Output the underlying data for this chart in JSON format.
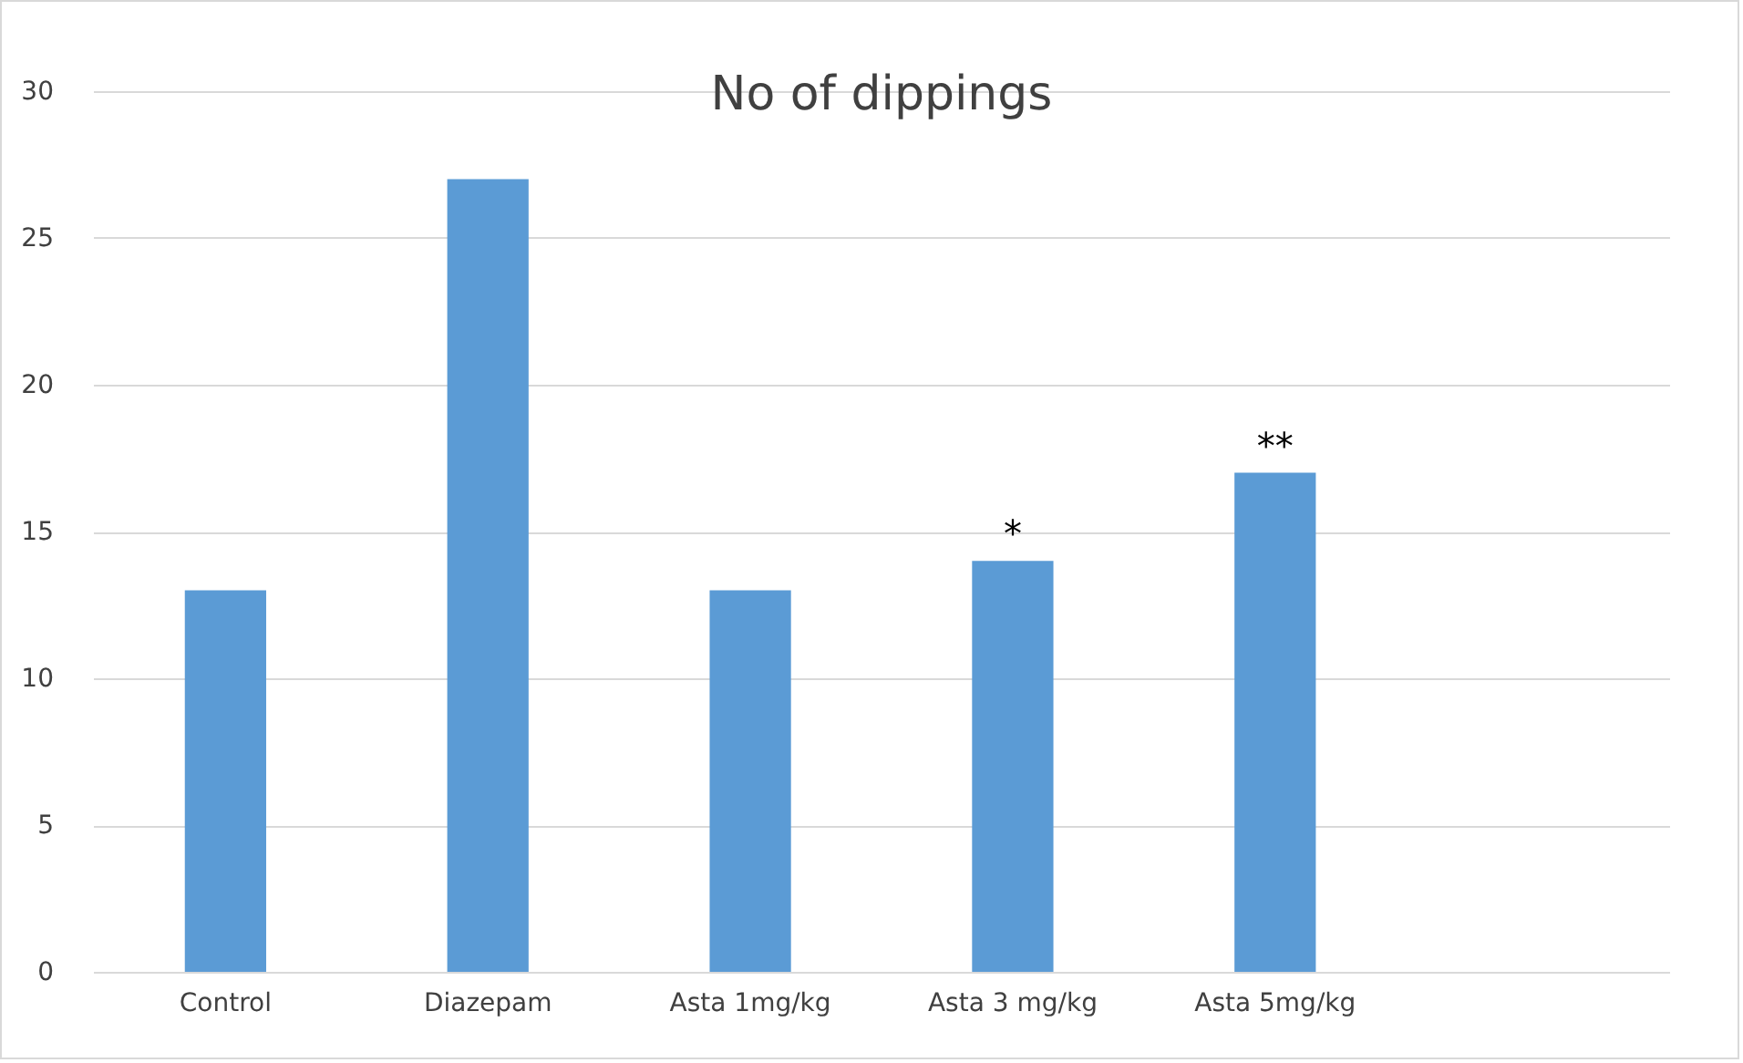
{
  "chart_data": {
    "type": "bar",
    "title": "No of dippings",
    "categories": [
      "Control",
      "Diazepam",
      "Asta 1mg/kg",
      "Asta 3 mg/kg",
      "Asta 5mg/kg",
      null
    ],
    "values": [
      13,
      27,
      13,
      14,
      17,
      null
    ],
    "color": "#5b9bd5",
    "ylim": [
      0,
      30
    ],
    "yticks": [
      0,
      5,
      10,
      15,
      20,
      25,
      30
    ],
    "grid": "y",
    "annotations": [
      {
        "text": "*",
        "x": "Asta 3 mg/kg",
        "y": 14
      },
      {
        "text": "**",
        "x": "Asta 5mg/kg",
        "y": 17
      }
    ]
  }
}
